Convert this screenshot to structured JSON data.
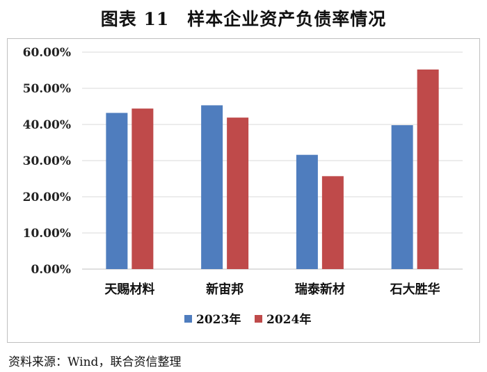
{
  "header": {
    "figure_no": "图表 11",
    "title": "样本企业资产负债率情况"
  },
  "source_note": "资料来源：Wind，联合资信整理",
  "colors": {
    "series_2023": "#4F7DBE",
    "series_2024": "#BF4A4A",
    "grid": "#d9d9d9"
  },
  "chart_data": {
    "type": "bar",
    "categories": [
      "天赐材料",
      "新宙邦",
      "瑞泰新材",
      "石大胜华"
    ],
    "series": [
      {
        "name": "2023年",
        "values": [
          43.2,
          45.3,
          31.6,
          39.8
        ]
      },
      {
        "name": "2024年",
        "values": [
          44.4,
          41.9,
          25.7,
          55.2
        ]
      }
    ],
    "ylim": [
      0,
      60
    ],
    "yticks": [
      "0.00%",
      "10.00%",
      "20.00%",
      "30.00%",
      "40.00%",
      "50.00%",
      "60.00%"
    ],
    "grid": true,
    "legend": "bottom-center"
  }
}
